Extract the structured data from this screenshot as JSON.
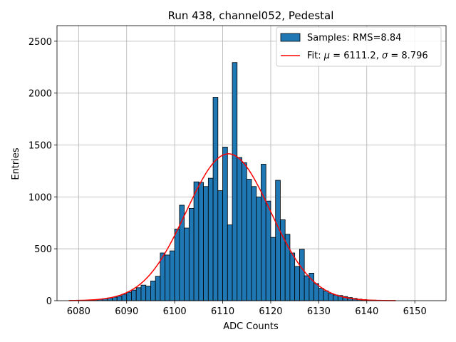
{
  "chart_data": {
    "type": "bar",
    "title": "Run 438, channel052, Pedestal",
    "xlabel": "ADC Counts",
    "ylabel": "Entries",
    "xlim": [
      6075.5,
      6156.5
    ],
    "ylim": [
      0,
      2650
    ],
    "xticks": [
      6080,
      6090,
      6100,
      6110,
      6120,
      6130,
      6140,
      6150
    ],
    "yticks": [
      0,
      500,
      1000,
      1500,
      2000,
      2500
    ],
    "grid": true,
    "legend_position": "top-right",
    "bar_color": "#1f77b4",
    "fit_color": "#ff0000",
    "histogram": {
      "name": "Samples: RMS=8.84",
      "bin_width": 1,
      "bin_start": 6078,
      "values": [
        1,
        1,
        2,
        4,
        6,
        10,
        14,
        19,
        26,
        34,
        45,
        62,
        82,
        102,
        125,
        150,
        140,
        190,
        235,
        460,
        440,
        480,
        690,
        920,
        700,
        890,
        1145,
        1140,
        1100,
        1180,
        1960,
        1060,
        1480,
        730,
        2295,
        1380,
        1330,
        1170,
        1100,
        1000,
        1315,
        960,
        610,
        1160,
        780,
        640,
        460,
        330,
        495,
        240,
        265,
        165,
        120,
        95,
        70,
        55,
        50,
        40,
        30,
        22,
        15,
        11,
        7,
        5,
        3,
        2,
        1,
        1
      ]
    },
    "fit": {
      "name_prefix": "Fit: ",
      "mu_value": "6111.2",
      "sigma_value": "8.796",
      "mu": 6111.2,
      "sigma": 8.796,
      "amplitude": 1415,
      "x_range": [
        6078,
        6146
      ]
    }
  }
}
